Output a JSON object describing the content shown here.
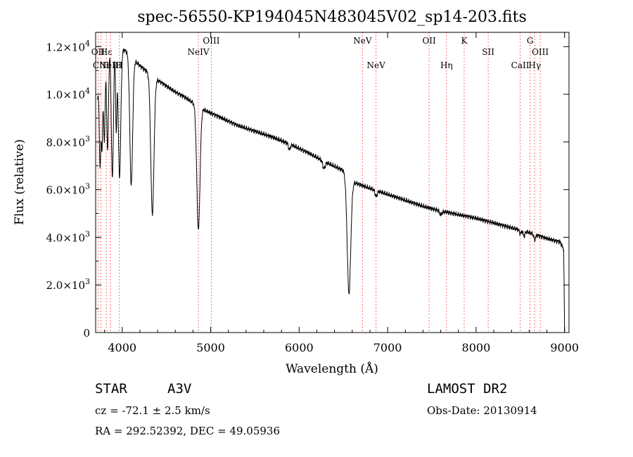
{
  "chart_data": {
    "type": "line",
    "title": "spec-56550-KP194045N483045V02_sp14-203.fits",
    "xlabel": "Wavelength (Å)",
    "ylabel": "Flux (relative)",
    "xlim": [
      3700,
      9050
    ],
    "ylim": [
      0,
      12600
    ],
    "x_ticks": [
      4000,
      5000,
      6000,
      7000,
      8000,
      9000
    ],
    "y_ticks": [
      {
        "value": 0,
        "mantissa": "0",
        "exponent": ""
      },
      {
        "value": 2000,
        "mantissa": "2.0×10",
        "exponent": "3"
      },
      {
        "value": 4000,
        "mantissa": "4.0×10",
        "exponent": "3"
      },
      {
        "value": 6000,
        "mantissa": "6.0×10",
        "exponent": "3"
      },
      {
        "value": 8000,
        "mantissa": "8.0×10",
        "exponent": "3"
      },
      {
        "value": 10000,
        "mantissa": "1.0×10",
        "exponent": "4"
      },
      {
        "value": 12000,
        "mantissa": "1.2×10",
        "exponent": "4"
      }
    ],
    "grid": false,
    "continuum": [
      [
        3720,
        9800
      ],
      [
        3760,
        10800
      ],
      [
        3800,
        11400
      ],
      [
        3840,
        11900
      ],
      [
        3900,
        12050
      ],
      [
        3950,
        11950
      ],
      [
        4000,
        11900
      ],
      [
        4050,
        11800
      ],
      [
        4120,
        11500
      ],
      [
        4200,
        11200
      ],
      [
        4300,
        10900
      ],
      [
        4400,
        10600
      ],
      [
        4500,
        10350
      ],
      [
        4600,
        10100
      ],
      [
        4700,
        9900
      ],
      [
        4800,
        9650
      ],
      [
        4860,
        9500
      ],
      [
        4950,
        9300
      ],
      [
        5100,
        9050
      ],
      [
        5300,
        8700
      ],
      [
        5500,
        8450
      ],
      [
        5700,
        8200
      ],
      [
        5900,
        7900
      ],
      [
        6100,
        7550
      ],
      [
        6300,
        7150
      ],
      [
        6500,
        6800
      ],
      [
        6620,
        6300
      ],
      [
        6800,
        6050
      ],
      [
        7000,
        5800
      ],
      [
        7200,
        5550
      ],
      [
        7400,
        5300
      ],
      [
        7600,
        5100
      ],
      [
        7800,
        4950
      ],
      [
        8000,
        4800
      ],
      [
        8200,
        4600
      ],
      [
        8400,
        4400
      ],
      [
        8600,
        4200
      ],
      [
        8800,
        3950
      ],
      [
        8950,
        3800
      ],
      [
        8990,
        3500
      ],
      [
        9000,
        0
      ]
    ],
    "absorption_lines": [
      {
        "x": 3750,
        "depth": 3500,
        "width": 8
      },
      {
        "x": 3771,
        "depth": 3200,
        "width": 8
      },
      {
        "x": 3798,
        "depth": 3300,
        "width": 9
      },
      {
        "x": 3835,
        "depth": 4200,
        "width": 10
      },
      {
        "x": 3889,
        "depth": 5500,
        "width": 12
      },
      {
        "x": 3933,
        "depth": 3500,
        "width": 7
      },
      {
        "x": 3970,
        "depth": 5400,
        "width": 14
      },
      {
        "x": 4102,
        "depth": 5400,
        "width": 16
      },
      {
        "x": 4341,
        "depth": 5800,
        "width": 18
      },
      {
        "x": 4861,
        "depth": 5200,
        "width": 18
      },
      {
        "x": 5890,
        "depth": 250,
        "width": 10
      },
      {
        "x": 6280,
        "depth": 300,
        "width": 14
      },
      {
        "x": 6563,
        "depth": 4900,
        "width": 20
      },
      {
        "x": 6870,
        "depth": 250,
        "width": 12
      },
      {
        "x": 7600,
        "depth": 150,
        "width": 14
      },
      {
        "x": 8500,
        "depth": 150,
        "width": 10
      },
      {
        "x": 8542,
        "depth": 200,
        "width": 10
      },
      {
        "x": 8662,
        "depth": 220,
        "width": 10
      }
    ],
    "reference_lines": [
      {
        "x": 3727,
        "label": "OII",
        "row": "upper"
      },
      {
        "x": 3760,
        "label": "CIII",
        "row": "lower"
      },
      {
        "x": 3820,
        "label": "Hε",
        "row": "upper"
      },
      {
        "x": 3869,
        "label": "NeIII",
        "row": "lower"
      },
      {
        "x": 3968,
        "label": "H",
        "row": "lower"
      },
      {
        "x": 4861,
        "label": "NeIV",
        "row": "upper"
      },
      {
        "x": 5007,
        "label": "OIII",
        "row": "top"
      },
      {
        "x": 6716,
        "label": "NeV",
        "row": "top"
      },
      {
        "x": 6869,
        "label": "NeV",
        "row": "mid"
      },
      {
        "x": 7469,
        "label": "OII",
        "row": "top"
      },
      {
        "x": 7665,
        "label": "Hη",
        "row": "mid"
      },
      {
        "x": 7865,
        "label": "K",
        "row": "top"
      },
      {
        "x": 8137,
        "label": "SII",
        "row": "upper"
      },
      {
        "x": 8498,
        "label": "CaII",
        "row": "mid"
      },
      {
        "x": 8610,
        "label": "G",
        "row": "top"
      },
      {
        "x": 8662,
        "label": "Hγ",
        "row": "mid"
      },
      {
        "x": 8725,
        "label": "OIII",
        "row": "upper"
      }
    ]
  },
  "info": {
    "object_type": "STAR",
    "subclass": "A3V",
    "survey": "LAMOST DR2",
    "redshift": "cz = -72.1 ± 2.5 km/s",
    "obs_date": "Obs-Date: 20130914",
    "coords": "RA = 292.52392, DEC =  49.05936"
  }
}
